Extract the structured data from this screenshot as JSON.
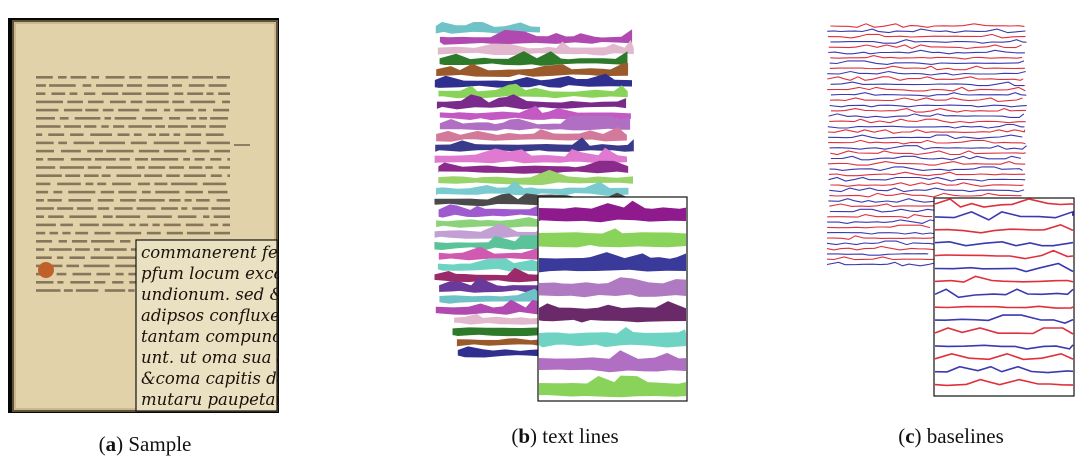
{
  "figure": {
    "panels": [
      {
        "id": "a",
        "letter": "a",
        "label": "Sample"
      },
      {
        "id": "b",
        "letter": "b",
        "label": "text lines"
      },
      {
        "id": "c",
        "letter": "c",
        "label": "baselines"
      }
    ],
    "manuscript_zoom_lines": [
      "commanerent fece",
      "pfum locum excolen",
      "undionum. sed &amp;cam",
      "adipsos confluxeru",
      "tantam compunct",
      "unt. ut oma sua ad",
      "&amp;coma capitis de",
      "mutaru paupetat"
    ],
    "colors": {
      "baseline_red": "#e0303c",
      "baseline_blue": "#3a3ab0",
      "parchment": "#e3d4ad"
    }
  }
}
